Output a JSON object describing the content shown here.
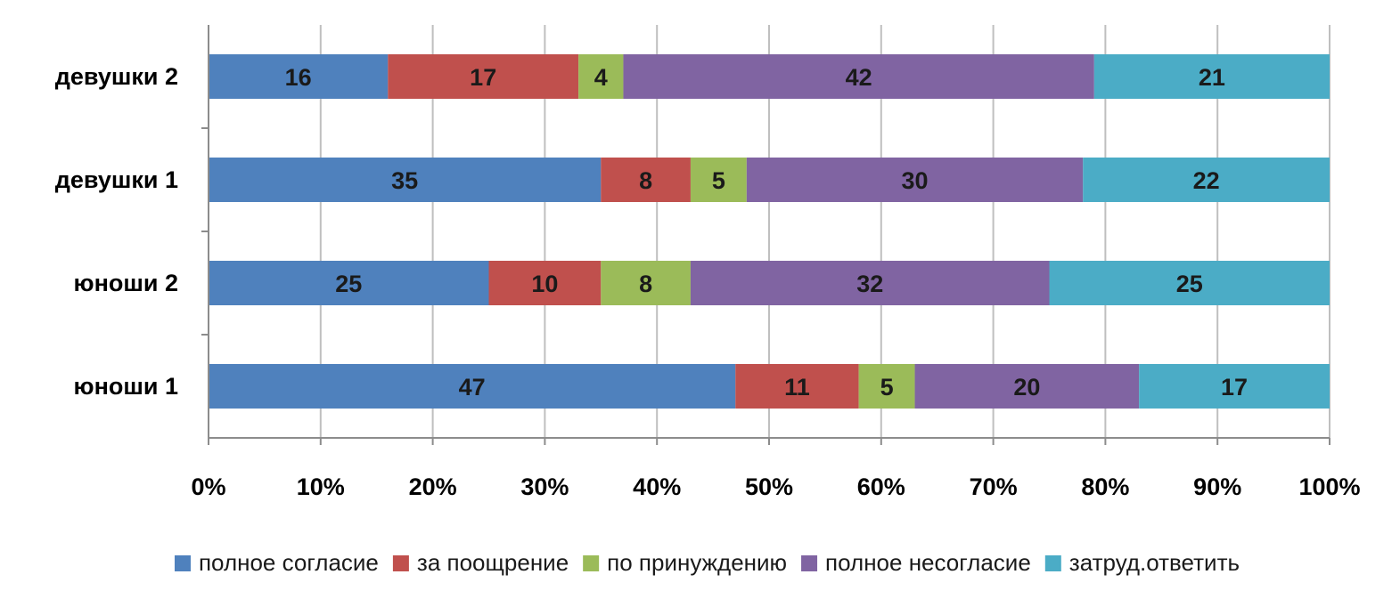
{
  "chart_data": {
    "type": "bar",
    "orientation": "horizontal",
    "stacking": "percent",
    "categories": [
      "юноши 1",
      "юноши 2",
      "девушки 1",
      "девушки 2"
    ],
    "series": [
      {
        "name": "полное согласие",
        "color": "#4f81bd",
        "values": [
          47,
          25,
          35,
          16
        ]
      },
      {
        "name": "за поощрение",
        "color": "#c0504d",
        "values": [
          11,
          10,
          8,
          17
        ]
      },
      {
        "name": "по принуждению",
        "color": "#9bbb59",
        "values": [
          5,
          8,
          5,
          4
        ]
      },
      {
        "name": "полное несогласие",
        "color": "#8064a2",
        "values": [
          20,
          32,
          30,
          42
        ]
      },
      {
        "name": "затруд.ответить",
        "color": "#4bacc6",
        "values": [
          17,
          25,
          22,
          21
        ]
      }
    ],
    "x_ticks": [
      "0%",
      "10%",
      "20%",
      "30%",
      "40%",
      "50%",
      "60%",
      "70%",
      "80%",
      "90%",
      "100%"
    ],
    "xlim": [
      0,
      100
    ],
    "grid": true,
    "legend_position": "bottom",
    "data_labels": true
  }
}
